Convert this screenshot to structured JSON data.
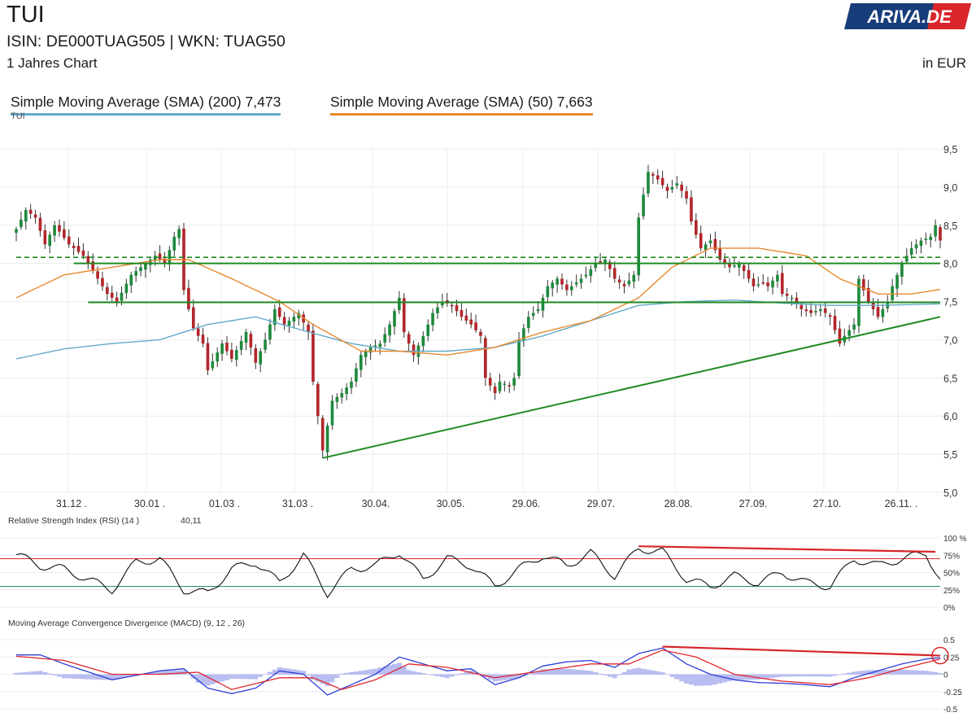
{
  "header": {
    "title": "TUI",
    "ident": "ISIN: DE000TUAG505  | WKN: TUAG50",
    "period": "1 Jahres Chart",
    "currency": "in EUR",
    "logo_text": "ARIVA.DE"
  },
  "legend": {
    "sma200": "Simple Moving Average (SMA) (200) 7,473",
    "sma50": "Simple Moving Average (SMA) (50) 7,663",
    "series": "TUI"
  },
  "colors": {
    "sma200": "#64a9c8",
    "sma50": "#e8892e",
    "up": "#1e8a3c",
    "down": "#b3262b",
    "support": "#1f8b23",
    "divergence": "#d6262c",
    "macd": "#2f3fd6",
    "signal": "#e0262c",
    "histogram": "#b9bdf0",
    "logo_blue": "#173c7a",
    "logo_red": "#d9262b"
  },
  "chart_data": [
    {
      "type": "candlestick",
      "title": "TUI",
      "ylim": [
        5.0,
        9.5
      ],
      "y_ticks": [
        "9,5",
        "9,0",
        "8,5",
        "8,0",
        "7,5",
        "7,0",
        "6,5",
        "6,0",
        "5,5",
        "5,0"
      ],
      "x_ticks": [
        "31.12 .",
        "30.01 .",
        "01.03 .",
        "31.03 .",
        "30.04.",
        "30.05.",
        "29.06.",
        "29.07.",
        "28.08.",
        "27.09.",
        "27.10.",
        "26.11. ."
      ],
      "close_series": [
        [
          0,
          8.45
        ],
        [
          2,
          8.7
        ],
        [
          4,
          8.6
        ],
        [
          6,
          8.25
        ],
        [
          8,
          8.5
        ],
        [
          11,
          8.25
        ],
        [
          14,
          8.1
        ],
        [
          16,
          7.9
        ],
        [
          19,
          7.6
        ],
        [
          21,
          7.5
        ],
        [
          24,
          7.85
        ],
        [
          26,
          7.95
        ],
        [
          29,
          8.1
        ],
        [
          31,
          8.0
        ],
        [
          33,
          8.35
        ],
        [
          34,
          8.45
        ],
        [
          35,
          7.65
        ],
        [
          37,
          7.15
        ],
        [
          39,
          6.95
        ],
        [
          40,
          6.6
        ],
        [
          43,
          6.95
        ],
        [
          45,
          6.75
        ],
        [
          48,
          7.1
        ],
        [
          50,
          6.7
        ],
        [
          52,
          7.0
        ],
        [
          54,
          7.4
        ],
        [
          56,
          7.2
        ],
        [
          59,
          7.35
        ],
        [
          61,
          7.1
        ],
        [
          62,
          6.45
        ],
        [
          63,
          6.0
        ],
        [
          64,
          5.55
        ],
        [
          66,
          6.2
        ],
        [
          68,
          6.3
        ],
        [
          70,
          6.45
        ],
        [
          72,
          6.8
        ],
        [
          74,
          6.9
        ],
        [
          76,
          6.95
        ],
        [
          78,
          7.2
        ],
        [
          80,
          7.55
        ],
        [
          81,
          7.1
        ],
        [
          83,
          6.8
        ],
        [
          85,
          7.05
        ],
        [
          87,
          7.35
        ],
        [
          89,
          7.5
        ],
        [
          91,
          7.45
        ],
        [
          93,
          7.3
        ],
        [
          95,
          7.2
        ],
        [
          97,
          7.05
        ],
        [
          98,
          6.5
        ],
        [
          100,
          6.3
        ],
        [
          101,
          6.45
        ],
        [
          103,
          6.4
        ],
        [
          104,
          6.5
        ],
        [
          105,
          7.0
        ],
        [
          107,
          7.3
        ],
        [
          109,
          7.4
        ],
        [
          111,
          7.7
        ],
        [
          113,
          7.8
        ],
        [
          115,
          7.65
        ],
        [
          117,
          7.75
        ],
        [
          119,
          7.85
        ],
        [
          121,
          8.0
        ],
        [
          123,
          8.05
        ],
        [
          125,
          7.8
        ],
        [
          127,
          7.7
        ],
        [
          129,
          7.85
        ],
        [
          130,
          8.6
        ],
        [
          132,
          9.2
        ],
        [
          134,
          9.1
        ],
        [
          136,
          8.95
        ],
        [
          138,
          9.05
        ],
        [
          140,
          8.85
        ],
        [
          141,
          8.55
        ],
        [
          143,
          8.2
        ],
        [
          145,
          8.3
        ],
        [
          147,
          8.05
        ],
        [
          149,
          7.95
        ],
        [
          151,
          8.0
        ],
        [
          152,
          7.9
        ],
        [
          154,
          7.7
        ],
        [
          156,
          7.75
        ],
        [
          157,
          7.7
        ],
        [
          159,
          7.85
        ],
        [
          160,
          7.6
        ],
        [
          162,
          7.55
        ],
        [
          164,
          7.4
        ],
        [
          166,
          7.35
        ],
        [
          168,
          7.4
        ],
        [
          170,
          7.3
        ],
        [
          172,
          6.95
        ],
        [
          173,
          7.05
        ],
        [
          175,
          7.2
        ],
        [
          176,
          7.8
        ],
        [
          178,
          7.5
        ],
        [
          180,
          7.3
        ],
        [
          182,
          7.5
        ],
        [
          183,
          7.7
        ],
        [
          185,
          8.0
        ],
        [
          187,
          8.2
        ],
        [
          189,
          8.3
        ],
        [
          191,
          8.35
        ],
        [
          192,
          8.5
        ],
        [
          193,
          8.3
        ]
      ],
      "sma200": [
        [
          0,
          6.75
        ],
        [
          10,
          6.88
        ],
        [
          20,
          6.95
        ],
        [
          30,
          7.0
        ],
        [
          40,
          7.2
        ],
        [
          50,
          7.3
        ],
        [
          60,
          7.12
        ],
        [
          70,
          6.95
        ],
        [
          80,
          6.85
        ],
        [
          90,
          6.85
        ],
        [
          100,
          6.9
        ],
        [
          110,
          7.05
        ],
        [
          120,
          7.25
        ],
        [
          130,
          7.45
        ],
        [
          140,
          7.5
        ],
        [
          150,
          7.52
        ],
        [
          160,
          7.48
        ],
        [
          170,
          7.45
        ],
        [
          180,
          7.45
        ],
        [
          193,
          7.47
        ]
      ],
      "sma50": [
        [
          0,
          7.55
        ],
        [
          10,
          7.85
        ],
        [
          20,
          7.95
        ],
        [
          30,
          8.05
        ],
        [
          36,
          8.05
        ],
        [
          45,
          7.8
        ],
        [
          55,
          7.5
        ],
        [
          62,
          7.2
        ],
        [
          72,
          6.85
        ],
        [
          80,
          6.85
        ],
        [
          90,
          6.8
        ],
        [
          100,
          6.9
        ],
        [
          110,
          7.1
        ],
        [
          120,
          7.25
        ],
        [
          130,
          7.55
        ],
        [
          137,
          7.95
        ],
        [
          145,
          8.2
        ],
        [
          155,
          8.2
        ],
        [
          165,
          8.1
        ],
        [
          172,
          7.8
        ],
        [
          180,
          7.6
        ],
        [
          187,
          7.6
        ],
        [
          193,
          7.66
        ]
      ],
      "annotations": {
        "support_dashed": 8.08,
        "support_upper": 8.0,
        "support_lower": 7.49,
        "trendline": [
          [
            64,
            5.45
          ],
          [
            193,
            7.3
          ]
        ]
      }
    },
    {
      "type": "line",
      "title": "Relative Strength Index (RSI) (14 )",
      "value_label": "40,11",
      "ylim": [
        0,
        100
      ],
      "y_ticks": [
        "100 %",
        "75%",
        "50%",
        "25%",
        "0%"
      ],
      "levels": [
        70,
        30
      ],
      "values": [
        [
          0,
          76
        ],
        [
          5,
          60
        ],
        [
          10,
          55
        ],
        [
          15,
          40
        ],
        [
          20,
          25
        ],
        [
          25,
          65
        ],
        [
          30,
          70
        ],
        [
          35,
          25
        ],
        [
          40,
          20
        ],
        [
          45,
          55
        ],
        [
          50,
          65
        ],
        [
          55,
          35
        ],
        [
          60,
          75
        ],
        [
          65,
          20
        ],
        [
          70,
          55
        ],
        [
          75,
          60
        ],
        [
          80,
          80
        ],
        [
          85,
          40
        ],
        [
          90,
          70
        ],
        [
          95,
          60
        ],
        [
          100,
          30
        ],
        [
          105,
          55
        ],
        [
          110,
          75
        ],
        [
          115,
          60
        ],
        [
          120,
          78
        ],
        [
          125,
          45
        ],
        [
          130,
          85
        ],
        [
          135,
          80
        ],
        [
          140,
          40
        ],
        [
          145,
          30
        ],
        [
          150,
          45
        ],
        [
          155,
          35
        ],
        [
          160,
          50
        ],
        [
          165,
          35
        ],
        [
          170,
          30
        ],
        [
          175,
          70
        ],
        [
          180,
          60
        ],
        [
          185,
          70
        ],
        [
          190,
          78
        ],
        [
          193,
          40
        ]
      ],
      "divergence": [
        [
          130,
          88
        ],
        [
          192,
          80
        ]
      ]
    },
    {
      "type": "line",
      "title": "Moving Average Convergence Divergence (MACD) (9, 12 , 26)",
      "ylim": [
        -0.5,
        0.5
      ],
      "y_ticks": [
        "0.5",
        "0.25",
        "0",
        "-0.25",
        "-0.5"
      ],
      "macd": [
        [
          0,
          0.28
        ],
        [
          5,
          0.28
        ],
        [
          10,
          0.15
        ],
        [
          20,
          -0.08
        ],
        [
          30,
          0.05
        ],
        [
          35,
          0.08
        ],
        [
          40,
          -0.2
        ],
        [
          45,
          -0.28
        ],
        [
          50,
          -0.2
        ],
        [
          55,
          0.05
        ],
        [
          60,
          0.0
        ],
        [
          65,
          -0.3
        ],
        [
          70,
          -0.15
        ],
        [
          75,
          0.0
        ],
        [
          80,
          0.25
        ],
        [
          85,
          0.15
        ],
        [
          90,
          0.05
        ],
        [
          95,
          0.08
        ],
        [
          100,
          -0.15
        ],
        [
          105,
          -0.05
        ],
        [
          110,
          0.12
        ],
        [
          115,
          0.18
        ],
        [
          120,
          0.2
        ],
        [
          125,
          0.1
        ],
        [
          130,
          0.3
        ],
        [
          135,
          0.38
        ],
        [
          140,
          0.15
        ],
        [
          145,
          0.0
        ],
        [
          150,
          -0.08
        ],
        [
          155,
          -0.12
        ],
        [
          160,
          -0.13
        ],
        [
          165,
          -0.15
        ],
        [
          170,
          -0.18
        ],
        [
          175,
          -0.05
        ],
        [
          180,
          0.05
        ],
        [
          185,
          0.15
        ],
        [
          190,
          0.22
        ],
        [
          193,
          0.24
        ]
      ],
      "signal": [
        [
          0,
          0.26
        ],
        [
          10,
          0.2
        ],
        [
          20,
          0.0
        ],
        [
          30,
          0.0
        ],
        [
          38,
          0.03
        ],
        [
          45,
          -0.22
        ],
        [
          55,
          -0.05
        ],
        [
          62,
          -0.05
        ],
        [
          68,
          -0.22
        ],
        [
          75,
          -0.08
        ],
        [
          82,
          0.15
        ],
        [
          90,
          0.1
        ],
        [
          100,
          -0.05
        ],
        [
          110,
          0.05
        ],
        [
          120,
          0.15
        ],
        [
          128,
          0.15
        ],
        [
          135,
          0.35
        ],
        [
          142,
          0.25
        ],
        [
          150,
          0.0
        ],
        [
          160,
          -0.1
        ],
        [
          170,
          -0.15
        ],
        [
          178,
          -0.05
        ],
        [
          186,
          0.1
        ],
        [
          193,
          0.22
        ]
      ],
      "divergence": [
        [
          135,
          0.4
        ],
        [
          193,
          0.27
        ]
      ]
    }
  ]
}
